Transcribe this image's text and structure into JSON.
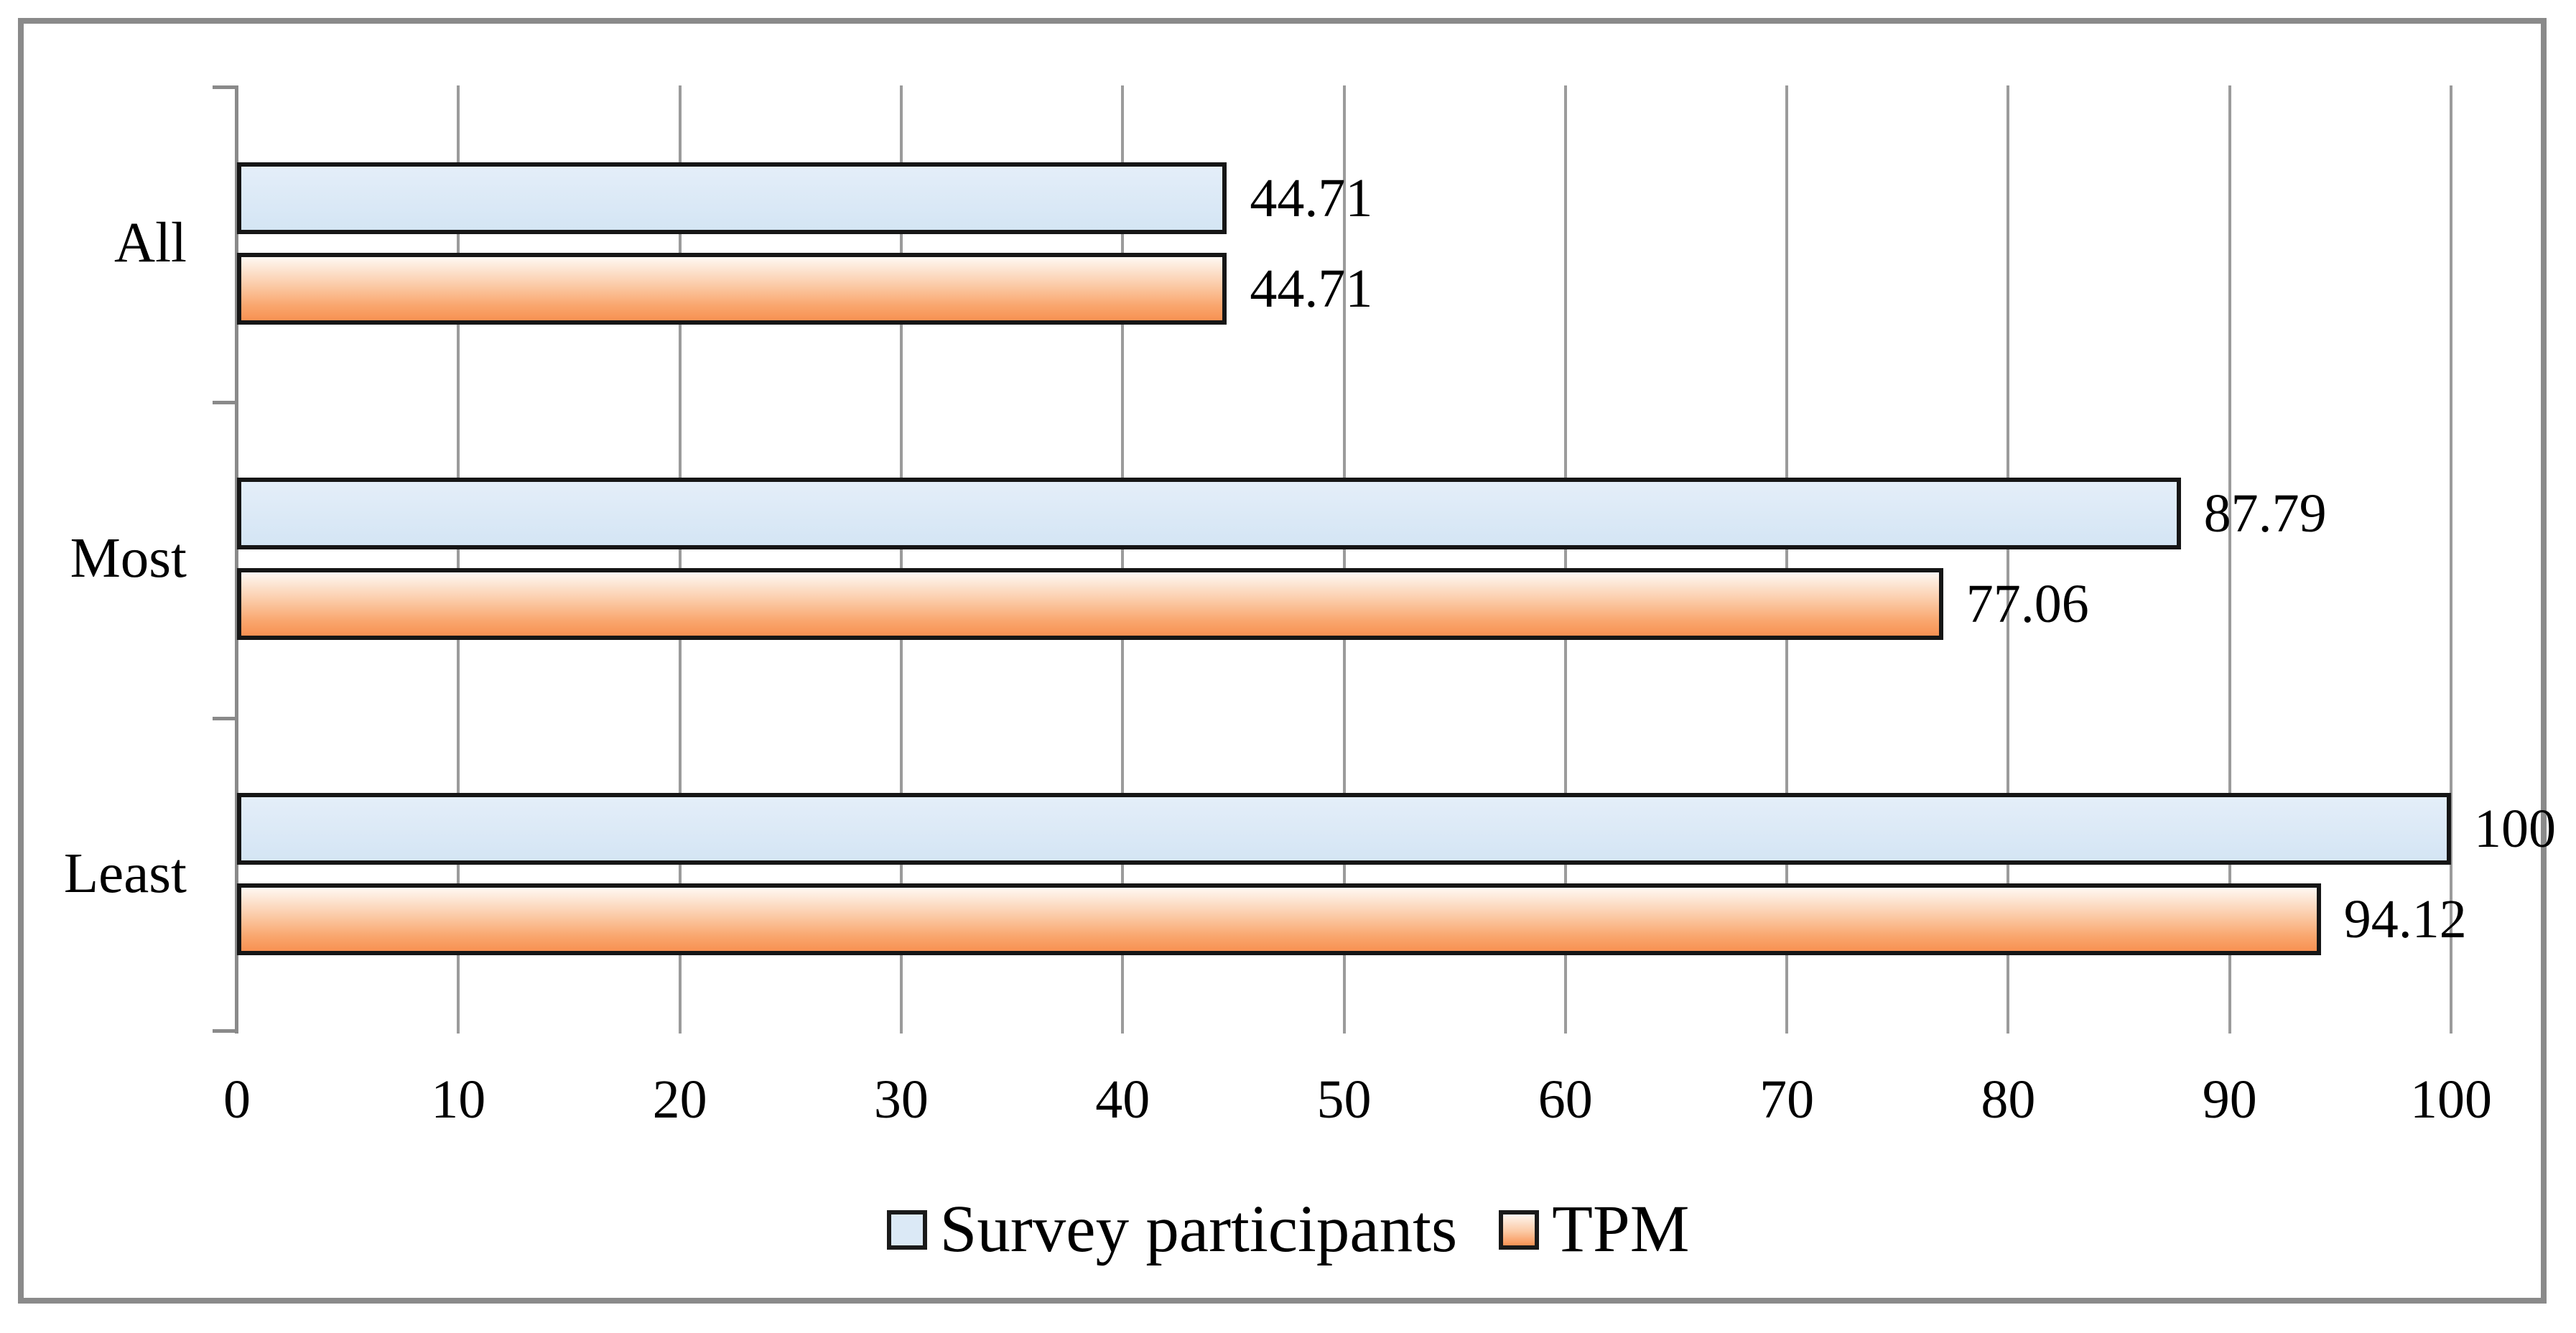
{
  "chart_data": {
    "type": "bar",
    "orientation": "horizontal",
    "title": "",
    "xlabel": "",
    "ylabel": "",
    "categories": [
      "All",
      "Most",
      "Least"
    ],
    "series": [
      {
        "name": "Survey participants",
        "values": [
          44.71,
          87.79,
          100
        ]
      },
      {
        "name": "TPM",
        "values": [
          44.71,
          77.06,
          94.12
        ]
      }
    ],
    "value_labels": [
      [
        "44.71",
        "87.79",
        "100"
      ],
      [
        "44.71",
        "77.06",
        "94.12"
      ]
    ],
    "xlim": [
      0,
      100
    ],
    "x_ticks": [
      "0",
      "10",
      "20",
      "30",
      "40",
      "50",
      "60",
      "70",
      "80",
      "90",
      "100"
    ],
    "grid": true,
    "legend_position": "bottom"
  },
  "colors": {
    "series_0_fill": "#d9e8f5",
    "series_1_fill_top": "#fef8f3",
    "series_1_fill_bottom": "#f89152",
    "bar_border": "#161616",
    "gridline": "#9b9b9b",
    "axis": "#8a8a8a",
    "frame_border": "#8a8a8a",
    "text": "#000000"
  }
}
